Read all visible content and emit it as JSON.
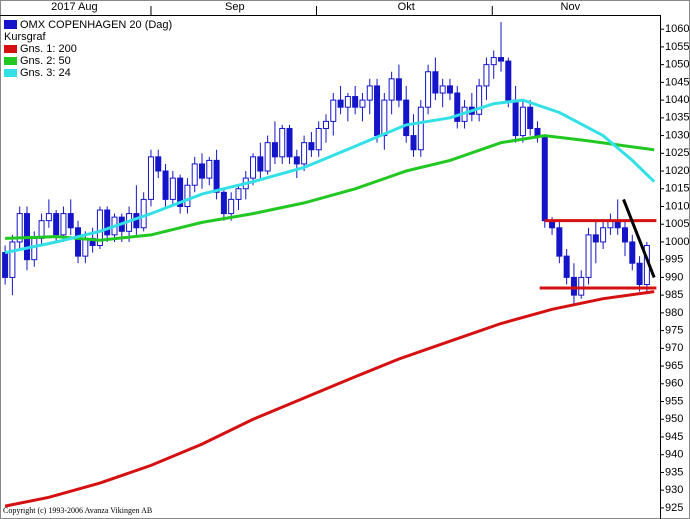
{
  "chart_data": {
    "type": "candlestick",
    "title": "OMX COPENHAGEN 20 (Dag)",
    "subtitle": "Kursgraf",
    "footer": "Copyright (c) 1993-2006 Avanza Vikingen AB",
    "candle_color": "#1414c8",
    "xlim": [
      -0.7,
      89.8
    ],
    "xticks": [
      {
        "value": 9.5,
        "label": "2017 Aug"
      },
      {
        "value": 31.5,
        "label": "Sep"
      },
      {
        "value": 55,
        "label": "Okt"
      },
      {
        "value": 77.5,
        "label": "Nov"
      }
    ],
    "month_boundaries": [
      20,
      42.7,
      66.8
    ],
    "ylim": [
      923,
      1064
    ],
    "yticks": [
      925,
      930,
      935,
      940,
      945,
      950,
      955,
      960,
      965,
      970,
      975,
      980,
      985,
      990,
      995,
      1000,
      1005,
      1010,
      1015,
      1020,
      1025,
      1030,
      1035,
      1040,
      1045,
      1050,
      1055,
      1060
    ],
    "ohlc": [
      [
        997,
        999,
        988,
        990
      ],
      [
        990,
        1002,
        985,
        1000
      ],
      [
        1000,
        1010,
        998,
        1008
      ],
      [
        1008,
        1010,
        992,
        995
      ],
      [
        995,
        1003,
        993,
        1001
      ],
      [
        1001,
        1008,
        999,
        1006
      ],
      [
        1006,
        1012,
        1004,
        1008
      ],
      [
        1008,
        1009,
        1000,
        1002
      ],
      [
        1002,
        1010,
        1000,
        1008
      ],
      [
        1008,
        1012,
        1002,
        1004
      ],
      [
        1004,
        1006,
        994,
        996
      ],
      [
        996,
        1003,
        994,
        1001
      ],
      [
        1001,
        1004,
        997,
        999
      ],
      [
        999,
        1010,
        998,
        1009
      ],
      [
        1009,
        1010,
        1000,
        1002
      ],
      [
        1002,
        1008,
        1000,
        1007
      ],
      [
        1007,
        1008,
        1000,
        1003
      ],
      [
        1003,
        1010,
        1000,
        1008
      ],
      [
        1008,
        1016,
        1002,
        1004
      ],
      [
        1004,
        1014,
        1003,
        1012
      ],
      [
        1012,
        1026,
        1010,
        1024
      ],
      [
        1024,
        1026,
        1018,
        1020
      ],
      [
        1020,
        1022,
        1010,
        1012
      ],
      [
        1012,
        1020,
        1010,
        1018
      ],
      [
        1018,
        1019,
        1008,
        1010
      ],
      [
        1010,
        1018,
        1008,
        1016
      ],
      [
        1016,
        1024,
        1014,
        1022
      ],
      [
        1022,
        1025,
        1015,
        1018
      ],
      [
        1018,
        1024,
        1016,
        1023
      ],
      [
        1023,
        1026,
        1012,
        1014
      ],
      [
        1014,
        1015,
        1006,
        1008
      ],
      [
        1008,
        1014,
        1006,
        1012
      ],
      [
        1012,
        1016,
        1009,
        1015
      ],
      [
        1015,
        1020,
        1012,
        1018
      ],
      [
        1018,
        1025,
        1016,
        1024
      ],
      [
        1024,
        1028,
        1018,
        1020
      ],
      [
        1020,
        1030,
        1019,
        1028
      ],
      [
        1028,
        1034,
        1022,
        1024
      ],
      [
        1024,
        1033,
        1022,
        1032
      ],
      [
        1032,
        1033,
        1022,
        1024
      ],
      [
        1024,
        1026,
        1018,
        1022
      ],
      [
        1022,
        1030,
        1020,
        1028
      ],
      [
        1028,
        1031,
        1024,
        1026
      ],
      [
        1026,
        1034,
        1024,
        1032
      ],
      [
        1032,
        1036,
        1028,
        1034
      ],
      [
        1034,
        1042,
        1030,
        1040
      ],
      [
        1040,
        1044,
        1036,
        1038
      ],
      [
        1038,
        1042,
        1034,
        1041
      ],
      [
        1041,
        1044,
        1036,
        1038
      ],
      [
        1038,
        1042,
        1034,
        1040
      ],
      [
        1040,
        1046,
        1036,
        1044
      ],
      [
        1044,
        1046,
        1028,
        1030
      ],
      [
        1030,
        1042,
        1026,
        1040
      ],
      [
        1040,
        1048,
        1036,
        1046
      ],
      [
        1046,
        1050,
        1038,
        1040
      ],
      [
        1040,
        1044,
        1028,
        1030
      ],
      [
        1030,
        1036,
        1024,
        1026
      ],
      [
        1026,
        1040,
        1024,
        1038
      ],
      [
        1038,
        1050,
        1036,
        1048
      ],
      [
        1048,
        1052,
        1040,
        1042
      ],
      [
        1042,
        1046,
        1038,
        1044
      ],
      [
        1044,
        1046,
        1040,
        1042
      ],
      [
        1042,
        1044,
        1032,
        1034
      ],
      [
        1034,
        1040,
        1032,
        1038
      ],
      [
        1038,
        1042,
        1034,
        1036
      ],
      [
        1036,
        1046,
        1034,
        1044
      ],
      [
        1044,
        1052,
        1040,
        1050
      ],
      [
        1050,
        1054,
        1046,
        1052
      ],
      [
        1052,
        1062,
        1048,
        1051
      ],
      [
        1051,
        1052,
        1038,
        1040
      ],
      [
        1040,
        1044,
        1028,
        1030
      ],
      [
        1030,
        1040,
        1028,
        1038
      ],
      [
        1038,
        1040,
        1030,
        1032
      ],
      [
        1032,
        1034,
        1028,
        1030
      ],
      [
        1030,
        1030,
        1004,
        1006
      ],
      [
        1006,
        1007,
        1002,
        1004
      ],
      [
        1004,
        1006,
        994,
        996
      ],
      [
        996,
        998,
        988,
        990
      ],
      [
        990,
        994,
        982,
        985
      ],
      [
        985,
        992,
        984,
        990
      ],
      [
        990,
        1004,
        988,
        1002
      ],
      [
        1002,
        1006,
        994,
        1000
      ],
      [
        1000,
        1006,
        998,
        1004
      ],
      [
        1004,
        1008,
        1002,
        1006
      ],
      [
        1006,
        1012,
        1002,
        1004
      ],
      [
        1004,
        1006,
        996,
        1000
      ],
      [
        1000,
        1002,
        992,
        994
      ],
      [
        994,
        996,
        986,
        988
      ],
      [
        988,
        1000,
        986,
        999
      ]
    ],
    "series": [
      {
        "name": "Gns. 1: 200",
        "color": "#d41010",
        "x": [
          0,
          6,
          13,
          20,
          27,
          34,
          41,
          48,
          54,
          61,
          68,
          75,
          82,
          89
        ],
        "values": [
          925.5,
          928,
          932,
          937,
          943,
          950,
          956,
          962,
          967,
          972,
          977,
          981,
          984,
          986
        ]
      },
      {
        "name": "Gns. 2: 50",
        "color": "#22c822",
        "x": [
          0,
          7,
          13,
          20,
          27,
          34,
          41,
          48,
          55,
          61,
          68,
          74,
          80,
          89
        ],
        "values": [
          1001,
          1001.5,
          1000.5,
          1002,
          1005.5,
          1008,
          1011,
          1015,
          1020,
          1023,
          1028,
          1030,
          1028.5,
          1026
        ]
      },
      {
        "name": "Gns. 3: 24",
        "color": "#33e0e8",
        "x": [
          0,
          7,
          13,
          20,
          27,
          34,
          41,
          48,
          55,
          61,
          67,
          71,
          76,
          82,
          86,
          89
        ],
        "values": [
          997,
          1000,
          1003,
          1008,
          1013.5,
          1017,
          1021,
          1027,
          1033,
          1035,
          1039,
          1040,
          1036.5,
          1030,
          1023,
          1017
        ]
      }
    ],
    "trend_lines": [
      {
        "color": "#d41010",
        "x": [
          74,
          89.3
        ],
        "y": [
          1006,
          1006
        ]
      },
      {
        "color": "#d41010",
        "x": [
          73.3,
          89.3
        ],
        "y": [
          987,
          987
        ]
      },
      {
        "color": "#000000",
        "x": [
          84.8,
          89
        ],
        "y": [
          1012,
          990
        ]
      }
    ]
  }
}
